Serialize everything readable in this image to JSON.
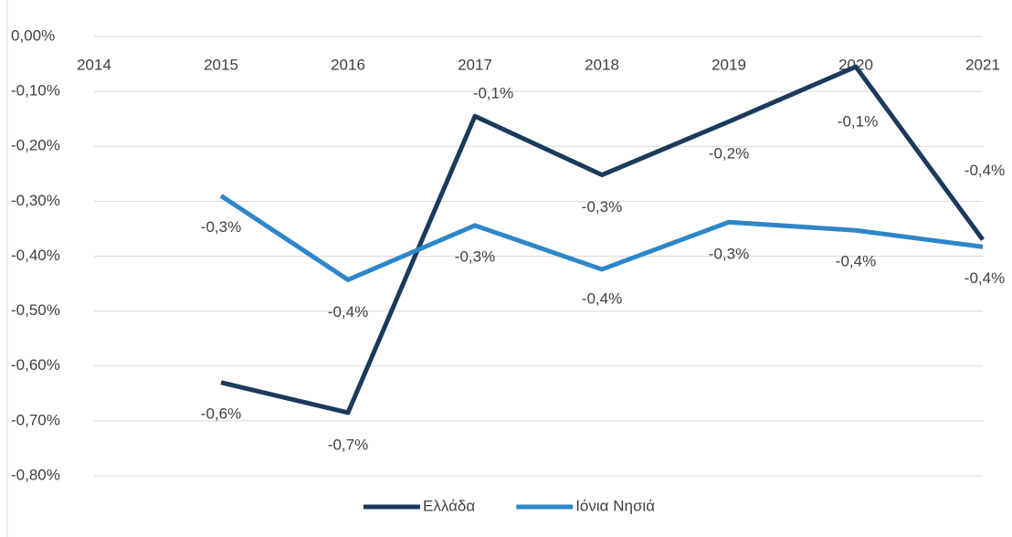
{
  "chart_data": {
    "type": "line",
    "x": [
      2015,
      2016,
      2017,
      2018,
      2019,
      2020,
      2021
    ],
    "xlim": [
      2014,
      2021
    ],
    "xticks": [
      2014,
      2015,
      2016,
      2017,
      2018,
      2019,
      2020,
      2021
    ],
    "ylim": [
      -0.8,
      0
    ],
    "yticks": [
      {
        "value": 0,
        "label": "0,00%"
      },
      {
        "value": -0.1,
        "label": "-0,10%"
      },
      {
        "value": -0.2,
        "label": "-0,20%"
      },
      {
        "value": -0.3,
        "label": "-0,30%"
      },
      {
        "value": -0.4,
        "label": "-0,40%"
      },
      {
        "value": -0.5,
        "label": "-0,50%"
      },
      {
        "value": -0.6,
        "label": "-0,60%"
      },
      {
        "value": -0.7,
        "label": "-0,70%"
      },
      {
        "value": -0.8,
        "label": "-0,80%"
      }
    ],
    "grid": true,
    "legend": "bottom",
    "series": [
      {
        "name": "Ελλάδα",
        "color": "#1b3a5c",
        "values": [
          -0.63,
          -0.685,
          -0.145,
          -0.252,
          -0.155,
          -0.055,
          -0.37
        ],
        "value_labels": [
          "-0,6%",
          "-0,7%",
          "-0,1%",
          "-0,3%",
          "-0,2%",
          "-0,1%",
          "-0,4%"
        ]
      },
      {
        "name": "Ιόνια Νησιά",
        "color": "#2e86c8",
        "values": [
          -0.29,
          -0.443,
          -0.344,
          -0.424,
          -0.338,
          -0.353,
          -0.383
        ],
        "value_labels": [
          "-0,3%",
          "-0,4%",
          "-0,3%",
          "-0,4%",
          "-0,3%",
          "-0,4%",
          "-0,4%"
        ]
      }
    ]
  }
}
